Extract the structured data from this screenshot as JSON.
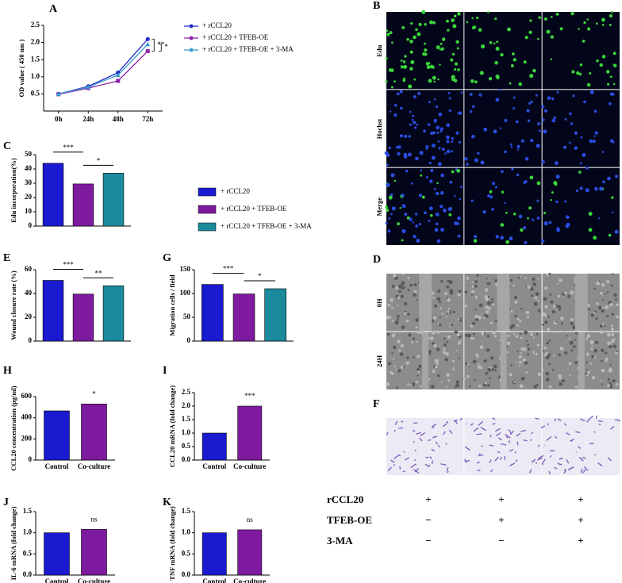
{
  "chart_data": [
    {
      "type": "line",
      "panel_label": "A",
      "ylabel": "OD value ( 450 nm )",
      "categories": [
        "0h",
        "24h",
        "48h",
        "72h"
      ],
      "series": [
        {
          "name": "+ rCCL20",
          "color": "#1f2bc4",
          "marker": "circle",
          "values": [
            0.5,
            0.72,
            1.12,
            2.1
          ]
        },
        {
          "name": "+ rCCL20 + TFEB-OE",
          "color": "#8a1fa8",
          "marker": "square",
          "values": [
            0.49,
            0.67,
            0.88,
            1.75
          ]
        },
        {
          "name": "+ rCCL20 + TFEB-OE + 3-MA",
          "color": "#3a9ccc",
          "marker": "triangle",
          "values": [
            0.5,
            0.7,
            1.05,
            1.95
          ]
        }
      ],
      "ylim": [
        0,
        2.5
      ],
      "yticks": [
        0.5,
        {
          "value": 1,
          "label": "1.0"
        },
        1.5,
        {
          "value": 2,
          "label": "2.0"
        },
        2.5
      ],
      "annotations": [
        "**",
        "*"
      ]
    },
    {
      "type": "bar",
      "panel_label": "C",
      "ylabel": "Edu incorporation(%)",
      "categories": [
        null,
        null,
        null
      ],
      "values": [
        44,
        29.5,
        37
      ],
      "colors": [
        "#1a1ad0",
        "#7d1a9e",
        "#1a8a9c"
      ],
      "ylim": [
        0,
        50
      ],
      "yticks": [
        0,
        10,
        20,
        30,
        40,
        50
      ],
      "annotations": [
        "***",
        "*"
      ]
    },
    {
      "type": "bar",
      "panel_label": "E",
      "ylabel": "Wound closure rate (%)",
      "categories": [
        null,
        null,
        null
      ],
      "values": [
        51,
        39.5,
        46.5
      ],
      "colors": [
        "#1a1ad0",
        "#7d1a9e",
        "#1a8a9c"
      ],
      "ylim": [
        0,
        60
      ],
      "yticks": [
        0,
        20,
        40,
        60
      ],
      "annotations": [
        "***",
        "**"
      ]
    },
    {
      "type": "bar",
      "panel_label": "G",
      "ylabel": "Migration cells / field",
      "categories": [
        null,
        null,
        null
      ],
      "values": [
        119,
        99,
        110
      ],
      "colors": [
        "#1a1ad0",
        "#7d1a9e",
        "#1a8a9c"
      ],
      "ylim": [
        0,
        150
      ],
      "yticks": [
        0,
        50,
        100,
        150
      ],
      "annotations": [
        "***",
        "*"
      ]
    },
    {
      "type": "bar",
      "panel_label": "H",
      "ylabel": "CCL20 concentration (pg/ml)",
      "categories": [
        "Control",
        "Co-culture"
      ],
      "values": [
        465,
        530
      ],
      "colors": [
        "#1a1ad0",
        "#7d1a9e"
      ],
      "ylim": [
        0,
        600
      ],
      "yticks": [
        0,
        200,
        400,
        600
      ],
      "annotations": [
        "*"
      ]
    },
    {
      "type": "bar",
      "panel_label": "I",
      "ylabel": "CCL20 mRNA (fold change)",
      "categories": [
        "Control",
        "Co-culture"
      ],
      "values": [
        1.0,
        2.0
      ],
      "colors": [
        "#1a1ad0",
        "#7d1a9e"
      ],
      "ylim": [
        0,
        2.5
      ],
      "yticks": [
        {
          "value": 0,
          "label": "0.0"
        },
        0.5,
        {
          "value": 1,
          "label": "1.0"
        },
        1.5,
        {
          "value": 2,
          "label": "2.0"
        },
        2.5
      ],
      "annotations": [
        "***"
      ]
    },
    {
      "type": "bar",
      "panel_label": "J",
      "ylabel": "IL-6 mRNA (fold change)",
      "categories": [
        "Control",
        "Co-culture"
      ],
      "values": [
        1.0,
        1.08
      ],
      "colors": [
        "#1a1ad0",
        "#7d1a9e"
      ],
      "ylim": [
        0,
        1.5
      ],
      "yticks": [
        {
          "value": 0,
          "label": "0.0"
        },
        0.5,
        {
          "value": 1,
          "label": "1.0"
        },
        1.5
      ],
      "annotations": [
        "ns"
      ]
    },
    {
      "type": "bar",
      "panel_label": "K",
      "ylabel": "TNF mRNA (fold change)",
      "categories": [
        "Control",
        "Co-culture"
      ],
      "values": [
        1.0,
        1.07
      ],
      "colors": [
        "#1a1ad0",
        "#7d1a9e"
      ],
      "ylim": [
        0,
        1.5
      ],
      "yticks": [
        {
          "value": 0,
          "label": "0.0"
        },
        0.5,
        {
          "value": 1,
          "label": "1.0"
        },
        1.5
      ],
      "annotations": [
        "ns"
      ]
    }
  ],
  "legend": {
    "entries": [
      {
        "name": "+ rCCL20",
        "color": "#1a1ad0"
      },
      {
        "name": "+ rCCL20 + TFEB-OE",
        "color": "#7d1a9e"
      },
      {
        "name": "+ rCCL20 + TFEB-OE + 3-MA",
        "color": "#1a8a9c"
      }
    ]
  },
  "image_panels": [
    {
      "panel_label": "B",
      "row_labels": [
        "Edu",
        "Hochst",
        "Merge"
      ]
    },
    {
      "panel_label": "D",
      "row_labels": [
        "0H",
        "24H"
      ]
    },
    {
      "panel_label": "F",
      "row_labels": []
    }
  ],
  "treatment_table": {
    "rows": [
      {
        "label": "rCCL20",
        "cells": [
          "+",
          "+",
          "+"
        ]
      },
      {
        "label": "TFEB-OE",
        "cells": [
          "−",
          "+",
          "+"
        ]
      },
      {
        "label": "3-MA",
        "cells": [
          "−",
          "−",
          "+"
        ]
      }
    ]
  }
}
